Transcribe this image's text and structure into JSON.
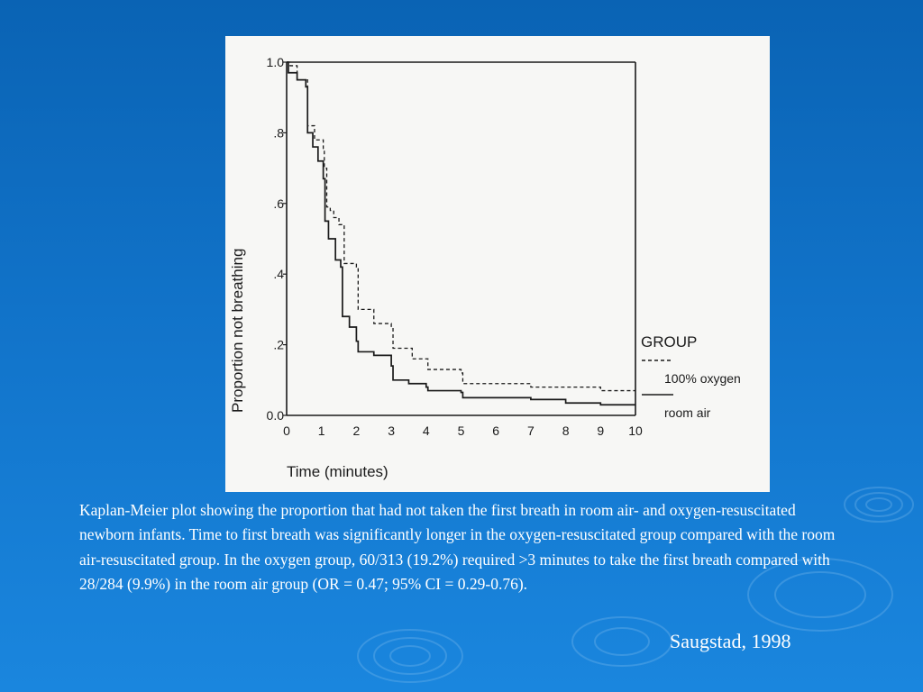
{
  "chart_data": {
    "type": "line",
    "xlabel": "Time (minutes)",
    "ylabel": "Proportion not breathing",
    "xlim": [
      0,
      10
    ],
    "ylim": [
      0,
      1
    ],
    "xticks": [
      "0",
      "1",
      "2",
      "3",
      "4",
      "5",
      "6",
      "7",
      "8",
      "9",
      "10"
    ],
    "yticks": [
      {
        "value": 0.0,
        "label": "0.0"
      },
      {
        "value": 0.2,
        "label": ".2"
      },
      {
        "value": 0.4,
        "label": ".4"
      },
      {
        "value": 0.6,
        "label": ".6"
      },
      {
        "value": 0.8,
        "label": ".8"
      },
      {
        "value": 1.0,
        "label": "1.0"
      }
    ],
    "legend": {
      "title": "GROUP",
      "position": "right"
    },
    "grid": false,
    "series": [
      {
        "name": "100% oxygen",
        "style": "dashed",
        "points": [
          [
            0,
            1.0
          ],
          [
            0.1,
            0.99
          ],
          [
            0.3,
            0.95
          ],
          [
            0.6,
            0.82
          ],
          [
            0.8,
            0.78
          ],
          [
            1.05,
            0.75
          ],
          [
            1.08,
            0.7
          ],
          [
            1.15,
            0.59
          ],
          [
            1.25,
            0.58
          ],
          [
            1.35,
            0.56
          ],
          [
            1.5,
            0.54
          ],
          [
            1.65,
            0.43
          ],
          [
            2.0,
            0.42
          ],
          [
            2.05,
            0.3
          ],
          [
            2.5,
            0.29
          ],
          [
            2.5,
            0.26
          ],
          [
            3.0,
            0.25
          ],
          [
            3.05,
            0.19
          ],
          [
            3.6,
            0.16
          ],
          [
            4.0,
            0.16
          ],
          [
            4.05,
            0.13
          ],
          [
            4.6,
            0.13
          ],
          [
            5.0,
            0.12
          ],
          [
            5.05,
            0.09
          ],
          [
            6.0,
            0.09
          ],
          [
            7.0,
            0.08
          ],
          [
            9.0,
            0.07
          ],
          [
            10.0,
            0.07
          ]
        ]
      },
      {
        "name": "room air",
        "style": "solid",
        "points": [
          [
            0,
            1.0
          ],
          [
            0.05,
            0.97
          ],
          [
            0.3,
            0.95
          ],
          [
            0.55,
            0.93
          ],
          [
            0.6,
            0.8
          ],
          [
            0.75,
            0.76
          ],
          [
            0.9,
            0.72
          ],
          [
            1.05,
            0.67
          ],
          [
            1.1,
            0.55
          ],
          [
            1.2,
            0.5
          ],
          [
            1.4,
            0.44
          ],
          [
            1.55,
            0.42
          ],
          [
            1.6,
            0.28
          ],
          [
            1.8,
            0.25
          ],
          [
            2.0,
            0.21
          ],
          [
            2.05,
            0.18
          ],
          [
            2.5,
            0.17
          ],
          [
            3.0,
            0.14
          ],
          [
            3.05,
            0.1
          ],
          [
            3.5,
            0.09
          ],
          [
            4.0,
            0.08
          ],
          [
            4.05,
            0.07
          ],
          [
            5.0,
            0.065
          ],
          [
            5.05,
            0.05
          ],
          [
            7.0,
            0.045
          ],
          [
            8.0,
            0.035
          ],
          [
            9.0,
            0.03
          ],
          [
            10.0,
            0.03
          ]
        ]
      }
    ]
  },
  "caption": "Kaplan-Meier plot showing the proportion that had not taken the first breath in room air- and oxygen-resuscitated newborn infants.  Time to first breath was significantly longer in the oxygen-resuscitated group compared with the room air-resuscitated group.  In the oxygen group, 60/313 (19.2%) required >3 minutes to take the first breath compared with 28/284 (9.9%) in the room air group (OR = 0.47; 95% CI = 0.29-0.76).",
  "credit": "Saugstad, 1998",
  "colors": {
    "background_top": "#0a63b4",
    "background_bottom": "#1a86de",
    "figure_background": "#f7f7f5",
    "ink": "#1a1a1a",
    "text": "#ffffff"
  }
}
